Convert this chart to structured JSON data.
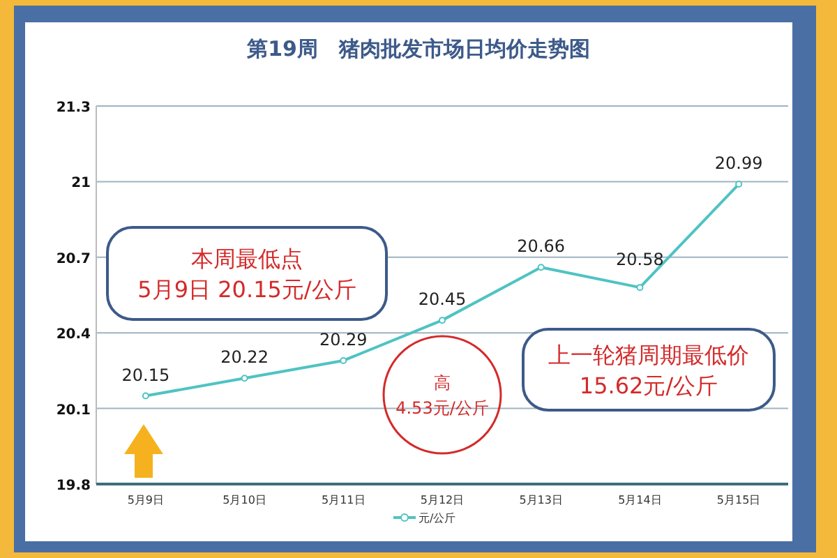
{
  "chart_data": {
    "type": "line",
    "title": "第19周　猪肉批发市场日均价走势图",
    "categories": [
      "5月9日",
      "5月10日",
      "5月11日",
      "5月12日",
      "5月13日",
      "5月14日",
      "5月15日"
    ],
    "series": [
      {
        "name": "元/公斤",
        "color": "#4fc3c3",
        "values": [
          20.15,
          20.22,
          20.29,
          20.45,
          20.66,
          20.58,
          20.99
        ]
      }
    ],
    "ylim": [
      19.8,
      21.3
    ],
    "yticks": [
      19.8,
      20.1,
      20.4,
      20.7,
      21,
      21.3
    ],
    "grid": "y",
    "legend": "bottom",
    "marker": "circle",
    "data_labels": true,
    "annotations": [
      "本周最低点\n5月9日 20.15元/公斤",
      "上一轮猪周期最低价\n15.62元/公斤",
      "高\n4.53元/公斤"
    ]
  }
}
